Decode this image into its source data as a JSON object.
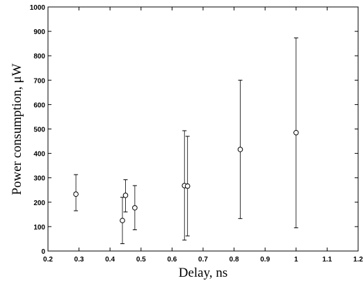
{
  "chart_data": {
    "type": "scatter",
    "xlabel": "Delay, ns",
    "ylabel": "Power consumption, μW",
    "xlim": [
      0.2,
      1.2
    ],
    "ylim": [
      0,
      1000
    ],
    "xticks": [
      0.2,
      0.3,
      0.4,
      0.5,
      0.6,
      0.7,
      0.8,
      0.9,
      1,
      1.1,
      1.2
    ],
    "xtick_labels": [
      "0.2",
      "0.3",
      "0.4",
      "0.5",
      "0.6",
      "0.7",
      "0.8",
      "0.9",
      "1",
      "1.1",
      "1.2"
    ],
    "yticks": [
      0,
      100,
      200,
      300,
      400,
      500,
      600,
      700,
      800,
      900,
      1000
    ],
    "ytick_labels": [
      "0",
      "100",
      "200",
      "300",
      "400",
      "500",
      "600",
      "700",
      "800",
      "900",
      "1000"
    ],
    "grid": false,
    "marker": "circle",
    "points": [
      {
        "x": 0.29,
        "y": 233,
        "ymin": 165,
        "ymax": 313
      },
      {
        "x": 0.44,
        "y": 125,
        "ymin": 30,
        "ymax": 220
      },
      {
        "x": 0.45,
        "y": 228,
        "ymin": 160,
        "ymax": 292
      },
      {
        "x": 0.48,
        "y": 177,
        "ymin": 87,
        "ymax": 268
      },
      {
        "x": 0.64,
        "y": 268,
        "ymin": 45,
        "ymax": 493
      },
      {
        "x": 0.65,
        "y": 266,
        "ymin": 62,
        "ymax": 470
      },
      {
        "x": 0.82,
        "y": 416,
        "ymin": 133,
        "ymax": 700
      },
      {
        "x": 1.0,
        "y": 485,
        "ymin": 95,
        "ymax": 873
      }
    ]
  }
}
